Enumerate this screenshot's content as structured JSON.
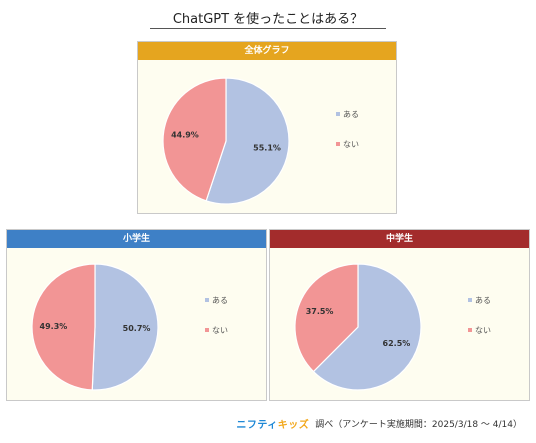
{
  "title": "ChatGPT を使ったことはある？",
  "colors": {
    "yes": "#b2c2e2",
    "no": "#f29595"
  },
  "chart_data": [
    {
      "type": "pie",
      "title": "全体グラフ",
      "header_color": "#e5a51f",
      "legend": [
        "ある",
        "ない"
      ],
      "legend_position": "right",
      "slices": [
        {
          "label": "ある",
          "value": 55.1,
          "display": "55.1%"
        },
        {
          "label": "ない",
          "value": 44.9,
          "display": "44.9%"
        }
      ]
    },
    {
      "type": "pie",
      "title": "小学生",
      "header_color": "#3e80c6",
      "legend": [
        "ある",
        "ない"
      ],
      "legend_position": "right",
      "slices": [
        {
          "label": "ある",
          "value": 50.7,
          "display": "50.7%"
        },
        {
          "label": "ない",
          "value": 49.3,
          "display": "49.3%"
        }
      ]
    },
    {
      "type": "pie",
      "title": "中学生",
      "header_color": "#a32c2c",
      "legend": [
        "ある",
        "ない"
      ],
      "legend_position": "right",
      "slices": [
        {
          "label": "ある",
          "value": 62.5,
          "display": "62.5%"
        },
        {
          "label": "ない",
          "value": 37.5,
          "display": "37.5%"
        }
      ]
    }
  ],
  "footer": {
    "brand_part1": "ニフティ",
    "brand_part2": "キッズ",
    "text": "調べ（アンケート実施期間：2025/3/18 ～ 4/14）"
  }
}
